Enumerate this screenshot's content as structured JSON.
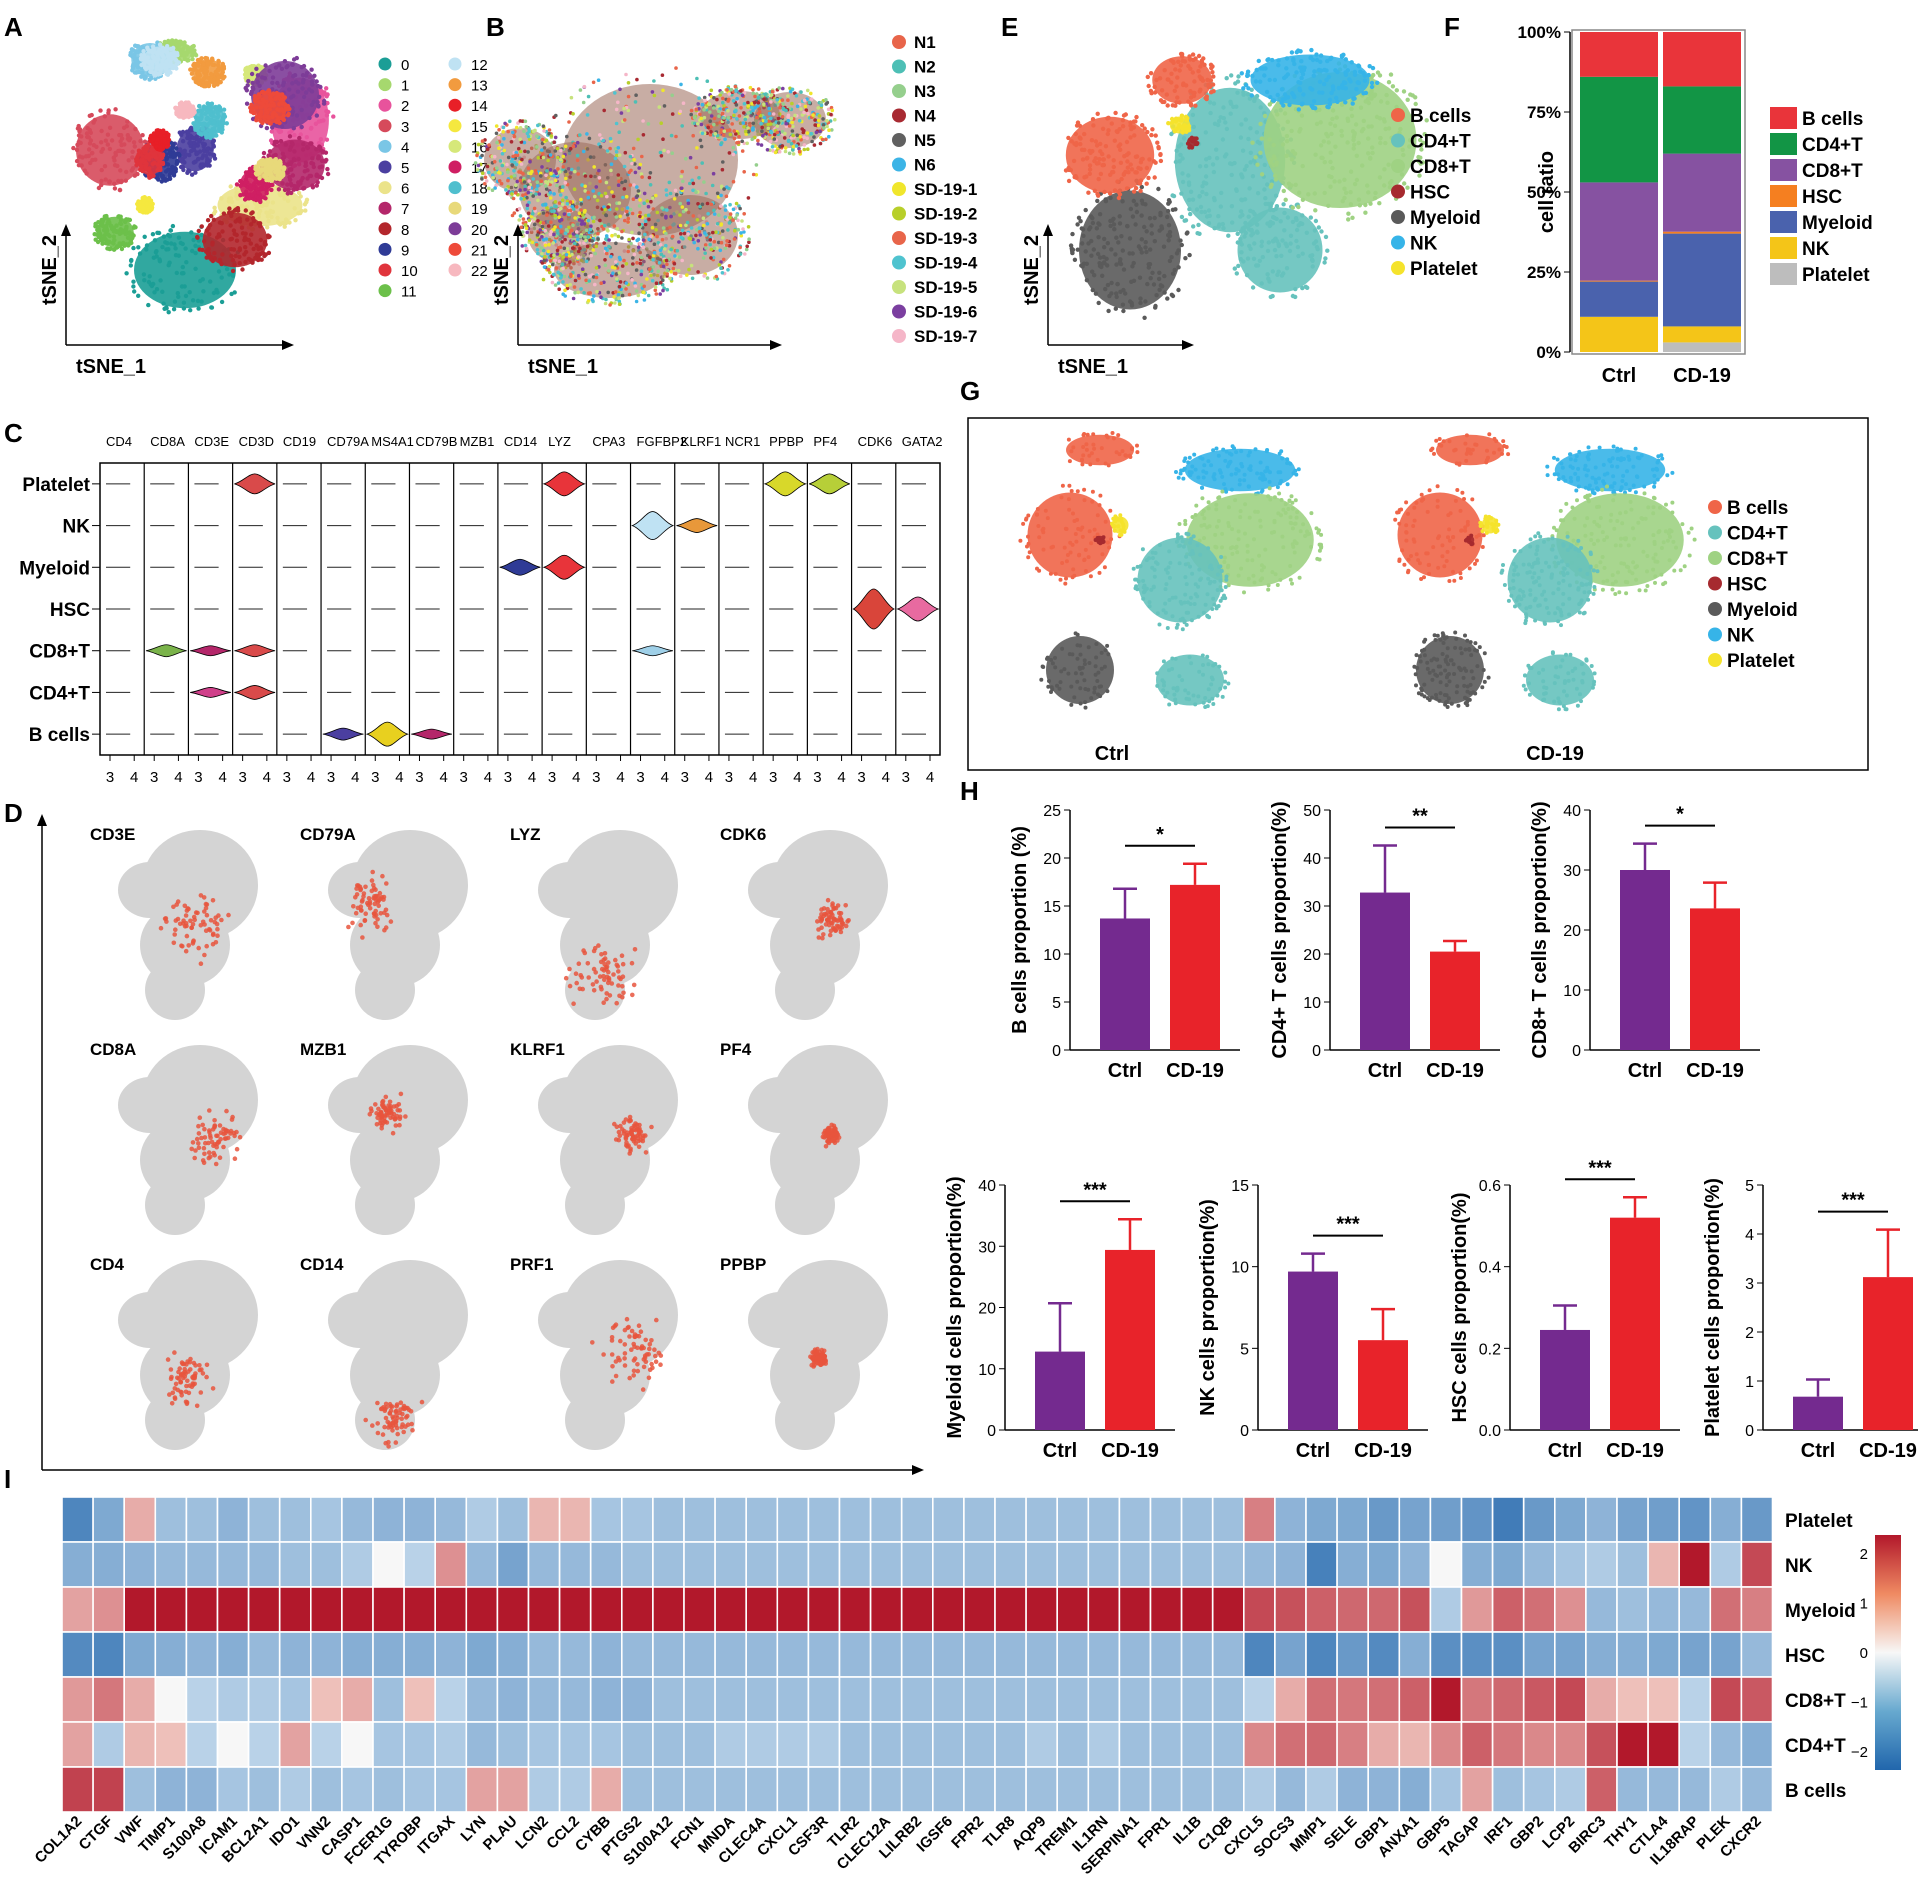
{
  "panel_labels": [
    "A",
    "B",
    "C",
    "D",
    "E",
    "F",
    "G",
    "H",
    "I"
  ],
  "tsne_axes": {
    "x": "tSNE_1",
    "y": "tSNE_2"
  },
  "panel_a": {
    "legend": [
      "0",
      "1",
      "2",
      "3",
      "4",
      "5",
      "6",
      "7",
      "8",
      "9",
      "10",
      "11",
      "12",
      "13",
      "14",
      "15",
      "16",
      "17",
      "18",
      "19",
      "20",
      "21",
      "22"
    ],
    "colors": [
      "#1b9e96",
      "#a6d86e",
      "#e8539c",
      "#d64a5b",
      "#7ac6e6",
      "#4b3fa0",
      "#ebe38a",
      "#b4276a",
      "#b3262c",
      "#2f3b96",
      "#e0343c",
      "#6cc04a",
      "#bfe2f3",
      "#f29b3f",
      "#e81f27",
      "#f5e83f",
      "#d6e87a",
      "#cf1f63",
      "#4fbfce",
      "#e8d97a",
      "#7d3c98",
      "#ee4a3a",
      "#f7b8bf"
    ]
  },
  "panel_b": {
    "legend": [
      "N1",
      "N2",
      "N3",
      "N4",
      "N5",
      "N6",
      "SD-19-1",
      "SD-19-2",
      "SD-19-3",
      "SD-19-4",
      "SD-19-5",
      "SD-19-6",
      "SD-19-7"
    ],
    "colors": [
      "#e8654a",
      "#4dbfb5",
      "#95cf8d",
      "#a82a32",
      "#606060",
      "#3cb4e6",
      "#f0e62c",
      "#b8cf2a",
      "#e8654a",
      "#4fc3cf",
      "#c7e27d",
      "#7b3fa0",
      "#f5b6c8"
    ]
  },
  "cell_types": {
    "legend": [
      "B cells",
      "CD4+T",
      "CD8+T",
      "HSC",
      "Myeloid",
      "NK",
      "Platelet"
    ],
    "colors": [
      "#ef6548",
      "#66c2bd",
      "#9fd283",
      "#a62a2f",
      "#5a5a5a",
      "#36b4e8",
      "#f5e32c"
    ]
  },
  "panel_c": {
    "genes": [
      "CD4",
      "CD8A",
      "CD3E",
      "CD3D",
      "CD19",
      "CD79A",
      "MS4A1",
      "CD79B",
      "MZB1",
      "CD14",
      "LYZ",
      "CPA3",
      "FGFBP2",
      "KLRF1",
      "NCR1",
      "PPBP",
      "PF4",
      "CDK6",
      "GATA2"
    ],
    "rows": [
      "Platelet",
      "NK",
      "Myeloid",
      "HSC",
      "CD8+T",
      "CD4+T",
      "B cells"
    ],
    "tick_lo": "3",
    "tick_hi": "4"
  },
  "panel_d": {
    "genes": [
      "CD3E",
      "CD79A",
      "LYZ",
      "CDK6",
      "CD8A",
      "MZB1",
      "KLRF1",
      "PF4",
      "CD4",
      "CD14",
      "PRF1",
      "PPBP"
    ]
  },
  "chart_data": [
    {
      "type": "bar",
      "stacked": true,
      "title": "F",
      "ylabel": "cell ratio",
      "categories": [
        "Ctrl",
        "CD-19"
      ],
      "yticks": [
        "0%",
        "25%",
        "50%",
        "75%",
        "100%"
      ],
      "series": [
        {
          "name": "Platelet",
          "values": [
            0.0,
            3.0
          ]
        },
        {
          "name": "NK",
          "values": [
            11.0,
            5.0
          ]
        },
        {
          "name": "Myeloid",
          "values": [
            11.0,
            29.0
          ]
        },
        {
          "name": "HSC",
          "values": [
            0.3,
            0.6
          ]
        },
        {
          "name": "CD8+T",
          "values": [
            30.7,
            24.4
          ]
        },
        {
          "name": "CD4+T",
          "values": [
            33.0,
            21.0
          ]
        },
        {
          "name": "B cells",
          "values": [
            14.0,
            17.0
          ]
        }
      ],
      "colors": [
        "#bdbdbd",
        "#f4c518",
        "#4a62ad",
        "#f57f20",
        "#8652a1",
        "#129545",
        "#e9343a"
      ]
    },
    {
      "type": "bar",
      "title": "B cells proportion",
      "ylabel": "B cells proportion (%)",
      "categories": [
        "Ctrl",
        "CD-19"
      ],
      "values": [
        13.7,
        17.2
      ],
      "errors": [
        3.1,
        2.2
      ],
      "ylim": [
        0,
        25
      ],
      "yticks": [
        "0",
        "5",
        "10",
        "15",
        "20",
        "25"
      ],
      "significance": "*"
    },
    {
      "type": "bar",
      "title": "CD4+ T cells proportion",
      "ylabel": "CD4+ T cells proportion(%)",
      "categories": [
        "Ctrl",
        "CD-19"
      ],
      "values": [
        32.8,
        20.5
      ],
      "errors": [
        9.8,
        2.2
      ],
      "ylim": [
        0,
        50
      ],
      "yticks": [
        "0",
        "10",
        "20",
        "30",
        "40",
        "50"
      ],
      "significance": "**"
    },
    {
      "type": "bar",
      "title": "CD8+ T cells proportion",
      "ylabel": "CD8+ T cells proportion(%)",
      "categories": [
        "Ctrl",
        "CD-19"
      ],
      "values": [
        30.0,
        23.6
      ],
      "errors": [
        4.4,
        4.3
      ],
      "ylim": [
        0,
        40
      ],
      "yticks": [
        "0",
        "10",
        "20",
        "30",
        "40"
      ],
      "significance": "*"
    },
    {
      "type": "bar",
      "title": "Myeloid cells proportion",
      "ylabel": "Myeloid cells proportion(%)",
      "categories": [
        "Ctrl",
        "CD-19"
      ],
      "values": [
        12.8,
        29.4
      ],
      "errors": [
        7.9,
        5.0
      ],
      "ylim": [
        0,
        40
      ],
      "yticks": [
        "0",
        "10",
        "20",
        "30",
        "40"
      ],
      "significance": "***"
    },
    {
      "type": "bar",
      "title": "NK cells proportion",
      "ylabel": "NK cells proportion(%)",
      "categories": [
        "Ctrl",
        "CD-19"
      ],
      "values": [
        9.7,
        5.5
      ],
      "errors": [
        1.1,
        1.9
      ],
      "ylim": [
        0,
        15
      ],
      "yticks": [
        "0",
        "5",
        "10",
        "15"
      ],
      "significance": "***"
    },
    {
      "type": "bar",
      "title": "HSC cells proportion",
      "ylabel": "HSC cells proportion(%)",
      "categories": [
        "Ctrl",
        "CD-19"
      ],
      "values": [
        0.245,
        0.52
      ],
      "errors": [
        0.06,
        0.05
      ],
      "ylim": [
        0,
        0.6
      ],
      "yticks": [
        "0.0",
        "0.2",
        "0.4",
        "0.6"
      ],
      "significance": "***"
    },
    {
      "type": "bar",
      "title": "Platelet cells proportion",
      "ylabel": "Platelet cells proportion(%)",
      "categories": [
        "Ctrl",
        "CD-19"
      ],
      "values": [
        0.68,
        3.12
      ],
      "errors": [
        0.35,
        0.97
      ],
      "ylim": [
        0,
        5
      ],
      "yticks": [
        "0",
        "1",
        "2",
        "3",
        "4",
        "5"
      ],
      "significance": "***"
    },
    {
      "type": "heatmap",
      "title": "I",
      "rows": [
        "Platelet",
        "NK",
        "Myeloid",
        "HSC",
        "CD8+T",
        "CD4+T",
        "B cells"
      ],
      "columns": [
        "COL1A2",
        "CTGF",
        "VWF",
        "TIMP1",
        "S100A8",
        "ICAM1",
        "BCL2A1",
        "IDO1",
        "VNN2",
        "CASP1",
        "FCER1G",
        "TYROBP",
        "ITGAX",
        "LYN",
        "PLAU",
        "LCN2",
        "CCL2",
        "CYBB",
        "PTGS2",
        "S100A12",
        "FCN1",
        "MNDA",
        "CLEC4A",
        "CXCL1",
        "CSF3R",
        "TLR2",
        "CLEC12A",
        "LILRB2",
        "IGSF6",
        "FPR2",
        "TLR8",
        "AQP9",
        "TREM1",
        "IL1RN",
        "SERPINA1",
        "FPR1",
        "IL1B",
        "C1QB",
        "CXCL5",
        "SOCS3",
        "MMP1",
        "SELE",
        "GBP1",
        "ANXA1",
        "GBP5",
        "TAGAP",
        "IRF1",
        "GBP2",
        "LCP2",
        "BIRC3",
        "THY1",
        "CTLA4",
        "IL18RAP",
        "PLEK",
        "CXCR2"
      ],
      "scale_ticks": [
        "2",
        "1",
        "0",
        "−1",
        "−2"
      ],
      "values": [
        [
          -1.6,
          -0.9,
          0.4,
          -0.5,
          -0.5,
          -0.7,
          -0.5,
          -0.5,
          -0.4,
          -0.6,
          -0.7,
          -0.7,
          -0.6,
          -0.3,
          -0.5,
          0.3,
          0.3,
          -0.4,
          -0.4,
          -0.5,
          -0.5,
          -0.5,
          -0.5,
          -0.5,
          -0.5,
          -0.5,
          -0.5,
          -0.5,
          -0.5,
          -0.5,
          -0.5,
          -0.5,
          -0.5,
          -0.5,
          -0.5,
          -0.5,
          -0.5,
          -0.5,
          0.9,
          -0.7,
          -0.9,
          -0.9,
          -1.2,
          -1.0,
          -1.1,
          -1.3,
          -1.8,
          -1.2,
          -0.9,
          -0.7,
          -1.0,
          -1.1,
          -1.3,
          -0.8,
          -1.2
        ],
        [
          -0.8,
          -0.8,
          -0.7,
          -0.6,
          -0.6,
          -0.6,
          -0.6,
          -0.5,
          -0.5,
          -0.3,
          -0.1,
          -0.2,
          0.7,
          -0.6,
          -1.0,
          -0.6,
          -0.6,
          -0.6,
          -0.5,
          -0.5,
          -0.5,
          -0.5,
          -0.5,
          -0.5,
          -0.5,
          -0.5,
          -0.5,
          -0.5,
          -0.5,
          -0.5,
          -0.5,
          -0.5,
          -0.5,
          -0.5,
          -0.5,
          -0.5,
          -0.5,
          -0.5,
          -0.6,
          -0.7,
          -1.7,
          -0.8,
          -0.9,
          -0.7,
          -0.1,
          -0.8,
          -0.9,
          -0.6,
          -0.4,
          -0.3,
          -0.5,
          0.3,
          2.3,
          -0.3,
          1.6
        ],
        [
          0.5,
          0.7,
          2.3,
          2.3,
          2.3,
          2.3,
          2.3,
          2.3,
          2.3,
          2.3,
          2.3,
          2.3,
          2.3,
          2.3,
          2.3,
          2.3,
          2.3,
          2.3,
          2.3,
          2.3,
          2.3,
          2.3,
          2.3,
          2.3,
          2.3,
          2.3,
          2.3,
          2.3,
          2.3,
          2.3,
          2.3,
          2.3,
          2.3,
          2.3,
          2.3,
          2.3,
          2.3,
          2.3,
          1.6,
          1.5,
          1.3,
          1.2,
          1.2,
          1.5,
          -0.3,
          0.6,
          1.3,
          1.1,
          0.7,
          -0.6,
          -0.5,
          -0.6,
          -0.6,
          1.1,
          0.9
        ],
        [
          -1.5,
          -1.6,
          -0.9,
          -0.8,
          -0.7,
          -0.8,
          -0.6,
          -0.7,
          -0.7,
          -0.8,
          -0.8,
          -0.8,
          -0.7,
          -0.9,
          -0.8,
          -0.6,
          -0.6,
          -0.7,
          -0.6,
          -0.6,
          -0.6,
          -0.6,
          -0.6,
          -0.6,
          -0.6,
          -0.6,
          -0.6,
          -0.6,
          -0.6,
          -0.6,
          -0.6,
          -0.6,
          -0.6,
          -0.6,
          -0.6,
          -0.6,
          -0.6,
          -0.6,
          -1.6,
          -1.0,
          -1.6,
          -1.2,
          -1.5,
          -0.8,
          -1.4,
          -1.4,
          -1.4,
          -1.0,
          -1.0,
          -0.8,
          -0.8,
          -0.9,
          -1.0,
          -1.0,
          -0.6
        ],
        [
          0.6,
          1.0,
          0.4,
          -0.1,
          -0.2,
          -0.3,
          -0.3,
          -0.4,
          0.2,
          0.4,
          -0.5,
          0.2,
          -0.2,
          -0.6,
          -0.7,
          -0.6,
          -0.6,
          -0.7,
          -0.7,
          -0.5,
          -0.5,
          -0.5,
          -0.5,
          -0.5,
          -0.5,
          -0.5,
          -0.5,
          -0.5,
          -0.5,
          -0.5,
          -0.5,
          -0.5,
          -0.5,
          -0.5,
          -0.5,
          -0.5,
          -0.5,
          -0.5,
          -0.2,
          0.4,
          1.1,
          1.0,
          1.1,
          1.3,
          2.3,
          1.0,
          1.2,
          1.4,
          1.6,
          0.4,
          0.2,
          0.2,
          -0.2,
          1.6,
          1.4
        ],
        [
          0.5,
          -0.3,
          0.3,
          0.2,
          -0.2,
          -0.1,
          -0.2,
          0.5,
          -0.2,
          0.1,
          -0.4,
          -0.4,
          -0.3,
          -0.6,
          -0.5,
          -0.4,
          -0.4,
          -0.4,
          -0.5,
          -0.5,
          -0.5,
          -0.3,
          -0.3,
          -0.3,
          -0.3,
          -0.5,
          -0.5,
          -0.5,
          -0.5,
          -0.5,
          -0.5,
          -0.3,
          -0.5,
          -0.3,
          -0.5,
          -0.5,
          -0.5,
          -0.5,
          0.8,
          1.1,
          1.2,
          0.9,
          0.4,
          0.3,
          0.8,
          1.3,
          1.0,
          0.8,
          0.8,
          1.5,
          2.4,
          2.4,
          -0.2,
          -0.6,
          -0.8
        ],
        [
          1.7,
          1.7,
          -0.5,
          -0.7,
          -0.7,
          -0.4,
          -0.5,
          -0.3,
          -0.5,
          -0.4,
          -0.5,
          -0.4,
          -0.4,
          0.5,
          0.5,
          -0.3,
          -0.3,
          0.4,
          -0.5,
          -0.5,
          -0.5,
          -0.5,
          -0.5,
          -0.5,
          -0.5,
          -0.5,
          -0.5,
          -0.5,
          -0.5,
          -0.5,
          -0.5,
          -0.5,
          -0.5,
          -0.5,
          -0.5,
          -0.5,
          -0.5,
          -0.5,
          -0.3,
          -0.6,
          -0.3,
          -0.7,
          -0.7,
          -0.8,
          -0.4,
          0.5,
          -0.5,
          -0.4,
          -0.3,
          1.3,
          -0.6,
          -0.6,
          -0.6,
          -0.3,
          -0.6
        ]
      ]
    }
  ]
}
